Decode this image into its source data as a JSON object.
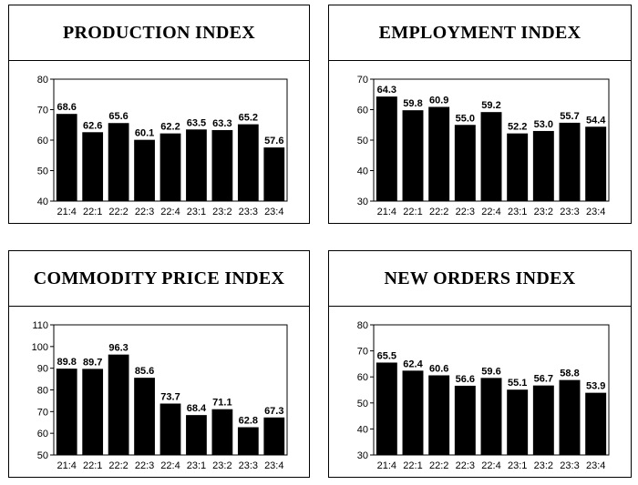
{
  "chart_data": [
    {
      "type": "bar",
      "title": "PRODUCTION INDEX",
      "categories": [
        "21:4",
        "22:1",
        "22:2",
        "22:3",
        "22:4",
        "23:1",
        "23:2",
        "23:3",
        "23:4"
      ],
      "values": [
        68.6,
        62.6,
        65.6,
        60.1,
        62.2,
        63.5,
        63.3,
        65.2,
        57.6
      ],
      "value_labels": [
        "68.6",
        "62.6",
        "65.6",
        "60.1",
        "62.2",
        "63.5",
        "63.3",
        "65.2",
        "57.6"
      ],
      "ylim": [
        40,
        80
      ],
      "yticks": [
        "40",
        "50",
        "60",
        "70",
        "80"
      ],
      "bar_color": "#000000"
    },
    {
      "type": "bar",
      "title": "EMPLOYMENT INDEX",
      "categories": [
        "21:4",
        "22:1",
        "22:2",
        "22:3",
        "22:4",
        "23:1",
        "23:2",
        "23:3",
        "23:4"
      ],
      "values": [
        64.3,
        59.8,
        60.9,
        55.0,
        59.2,
        52.2,
        53.0,
        55.7,
        54.4
      ],
      "value_labels": [
        "64.3",
        "59.8",
        "60.9",
        "55.0",
        "59.2",
        "52.2",
        "53.0",
        "55.7",
        "54.4"
      ],
      "ylim": [
        30,
        70
      ],
      "yticks": [
        "30",
        "40",
        "50",
        "60",
        "70"
      ],
      "bar_color": "#000000"
    },
    {
      "type": "bar",
      "title": "COMMODITY PRICE INDEX",
      "categories": [
        "21:4",
        "22:1",
        "22:2",
        "22:3",
        "22:4",
        "23:1",
        "23:2",
        "23:3",
        "23:4"
      ],
      "values": [
        89.8,
        89.7,
        96.3,
        85.6,
        73.7,
        68.4,
        71.1,
        62.8,
        67.3
      ],
      "value_labels": [
        "89.8",
        "89.7",
        "96.3",
        "85.6",
        "73.7",
        "68.4",
        "71.1",
        "62.8",
        "67.3"
      ],
      "ylim": [
        50,
        110
      ],
      "yticks": [
        "50",
        "60",
        "70",
        "80",
        "90",
        "100",
        "110"
      ],
      "bar_color": "#000000"
    },
    {
      "type": "bar",
      "title": "NEW ORDERS INDEX",
      "categories": [
        "21:4",
        "22:1",
        "22:2",
        "22:3",
        "22:4",
        "23:1",
        "23:2",
        "23:3",
        "23:4"
      ],
      "values": [
        65.5,
        62.4,
        60.6,
        56.6,
        59.6,
        55.1,
        56.7,
        58.8,
        53.9
      ],
      "value_labels": [
        "65.5",
        "62.4",
        "60.6",
        "56.6",
        "59.6",
        "55.1",
        "56.7",
        "58.8",
        "53.9"
      ],
      "ylim": [
        30,
        80
      ],
      "yticks": [
        "30",
        "40",
        "50",
        "60",
        "70",
        "80"
      ],
      "bar_color": "#000000"
    }
  ]
}
